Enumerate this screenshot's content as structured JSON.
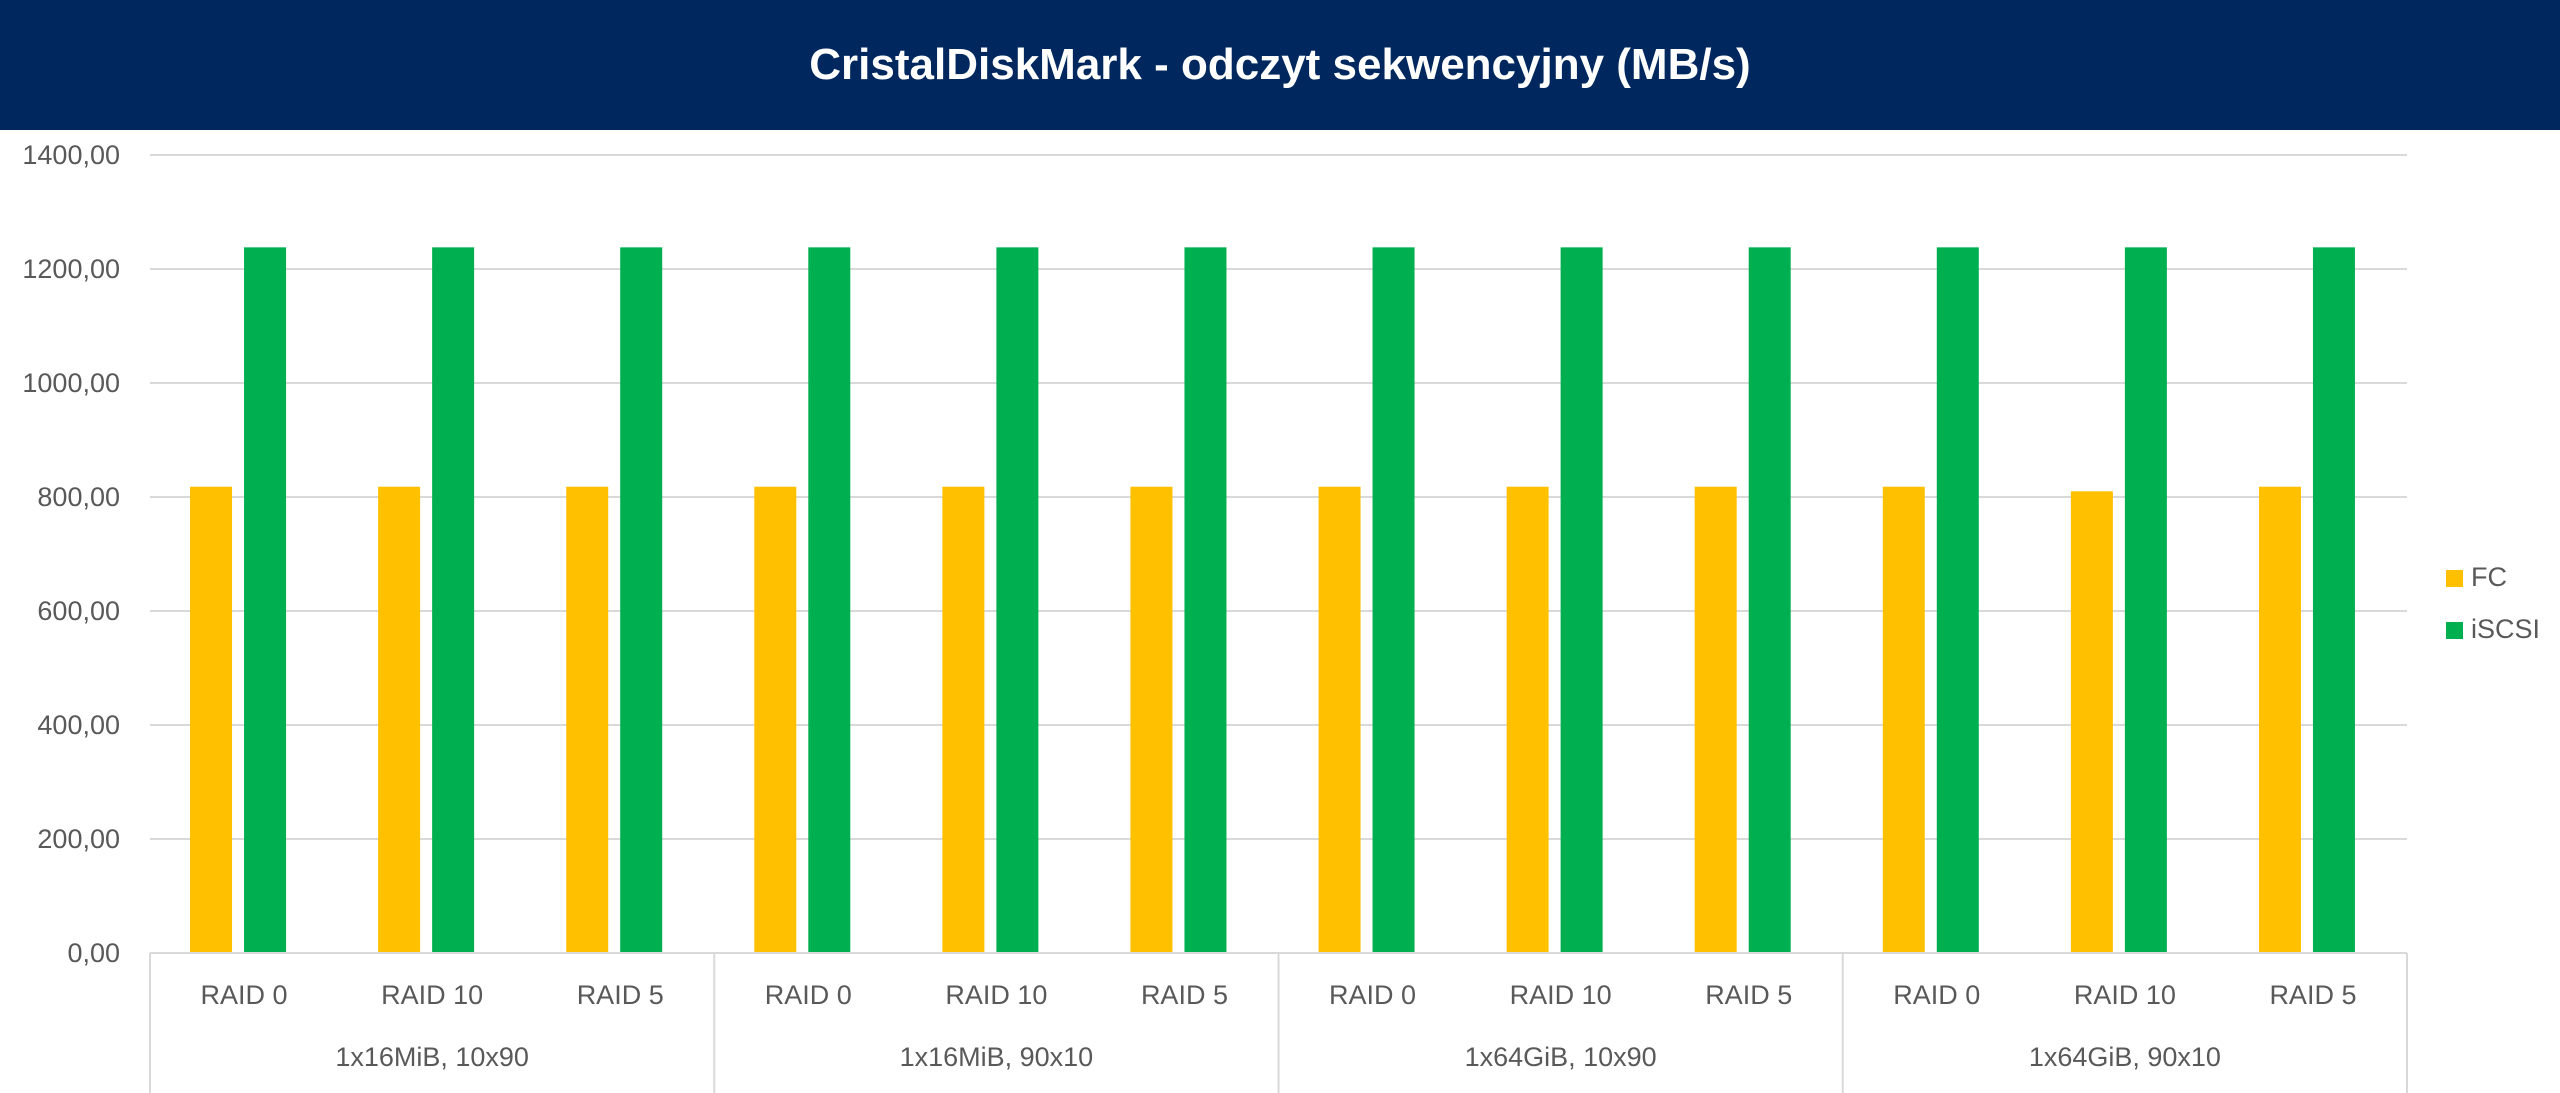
{
  "chart_data": {
    "type": "bar",
    "title": "CristalDiskMark - odczyt sekwencyjny (MB/s)",
    "xlabel": "",
    "ylabel": "",
    "ylim": [
      0,
      1400
    ],
    "y_ticks": [
      "0,00",
      "200,00",
      "400,00",
      "600,00",
      "800,00",
      "1000,00",
      "1200,00",
      "1400,00"
    ],
    "y_tick_values": [
      0,
      200,
      400,
      600,
      800,
      1000,
      1200,
      1400
    ],
    "grid": true,
    "legend_position": "right",
    "groups": [
      {
        "label": "1x16MiB, 10x90",
        "categories": [
          "RAID 0",
          "RAID 10",
          "RAID 5"
        ]
      },
      {
        "label": "1x16MiB, 90x10",
        "categories": [
          "RAID 0",
          "RAID 10",
          "RAID 5"
        ]
      },
      {
        "label": "1x64GiB, 10x90",
        "categories": [
          "RAID 0",
          "RAID 10",
          "RAID 5"
        ]
      },
      {
        "label": "1x64GiB, 90x10",
        "categories": [
          "RAID 0",
          "RAID 10",
          "RAID 5"
        ]
      }
    ],
    "series": [
      {
        "name": "FC",
        "color": "#ffc000",
        "values": [
          818,
          818,
          818,
          818,
          818,
          818,
          818,
          818,
          818,
          818,
          810,
          818
        ]
      },
      {
        "name": "iSCSI",
        "color": "#00b050",
        "values": [
          1238,
          1238,
          1238,
          1238,
          1238,
          1238,
          1238,
          1238,
          1238,
          1238,
          1238,
          1238
        ]
      }
    ]
  },
  "colors": {
    "title_bar": "#00285e",
    "grid": "#d9d9d9",
    "axis_text": "#595959"
  }
}
